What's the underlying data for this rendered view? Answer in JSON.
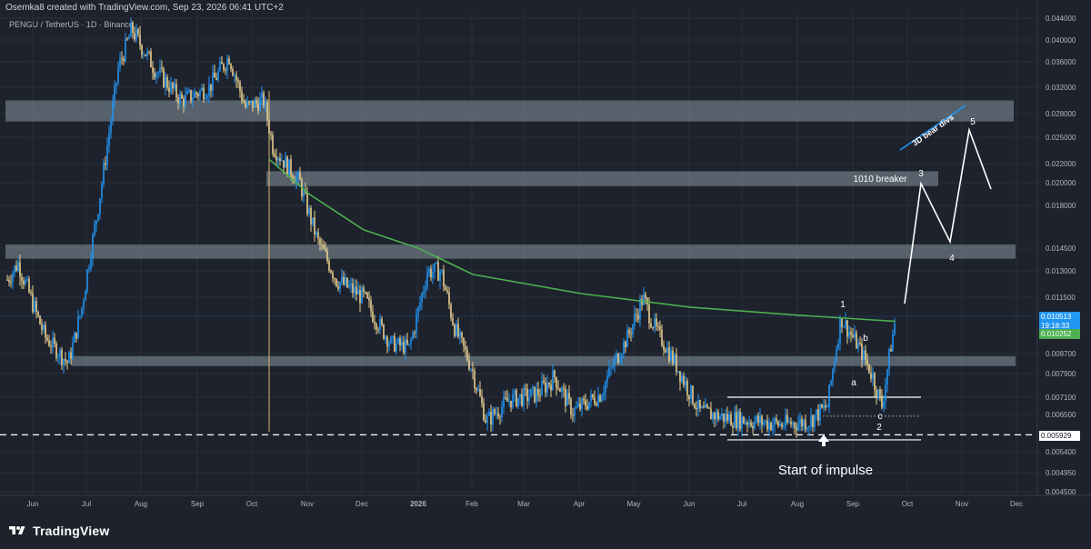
{
  "header": {
    "credit": "Osemka8 created with TradingView.com, Sep 23, 2026 06:41 UTC+2",
    "symbol": "PENGU / TetherUS · 1D · Binance"
  },
  "brand": {
    "name": "TradingView"
  },
  "colors": {
    "background": "#1e222d",
    "up_candle": "#2196f3",
    "down_candle": "#e8d090",
    "ma_line": "#4caf50",
    "zone": "#b2c7d1",
    "price_tag": "#2196f3",
    "ma_tag": "#4caf50"
  },
  "price_axis": {
    "ticks": [
      "0.044000",
      "0.040000",
      "0.036000",
      "0.032000",
      "0.028000",
      "0.025000",
      "0.022000",
      "0.020000",
      "0.018000",
      "0.014500",
      "0.013000",
      "0.011500",
      "0.008700",
      "0.007900",
      "0.007100",
      "0.006500",
      "0.005400",
      "0.004950",
      "0.004500"
    ],
    "current_price": "0.010513",
    "countdown": "19:18:33",
    "ma_value": "0.010252",
    "level_label": "0.005929"
  },
  "time_axis": {
    "labels": [
      "Jun",
      "Jul",
      "Aug",
      "Sep",
      "Oct",
      "Nov",
      "Dec",
      "2026",
      "Feb",
      "Mar",
      "Apr",
      "May",
      "Jun",
      "Jul",
      "Aug",
      "Sep",
      "Oct",
      "Nov",
      "Dec"
    ]
  },
  "chart_data": {
    "type": "line",
    "title": "PENGU / TetherUS · 1D · Binance",
    "scale": "log",
    "ylim": [
      0.0045,
      0.044
    ],
    "x": [
      "Jun",
      "Jul",
      "Aug",
      "Sep",
      "Oct",
      "Nov",
      "Dec",
      "2026",
      "Feb",
      "Mar",
      "Apr",
      "May",
      "Jun",
      "Jul",
      "Aug",
      "Sep",
      "Oct",
      "Nov",
      "Dec"
    ],
    "series": [
      {
        "values": [
          0.0125,
          0.0092,
          0.033,
          0.032,
          0.031,
          0.0205,
          0.011,
          0.0092,
          0.0064,
          0.0068,
          0.0065,
          0.011,
          0.0068,
          0.0064,
          0.0062,
          0.007,
          null,
          null,
          null
        ]
      }
    ],
    "annotations": {
      "zones": [
        [
          0.027,
          0.03
        ],
        [
          0.0197,
          0.0212
        ],
        [
          0.0138,
          0.0148
        ],
        [
          0.0082,
          0.0086
        ]
      ],
      "ma_200": [
        0.0225,
        0.019,
        0.016,
        0.0145,
        0.0128,
        0.0117,
        0.011,
        0.0106,
        0.0103
      ],
      "horizontal_levels": [
        0.0071,
        0.00645,
        0.0059,
        0.00575
      ],
      "wave_labels": [
        "1",
        "2",
        "a",
        "b",
        "c",
        "3",
        "4",
        "5"
      ],
      "text": [
        "1010 breaker",
        "3D bear divs",
        "Start of impulse"
      ]
    }
  }
}
